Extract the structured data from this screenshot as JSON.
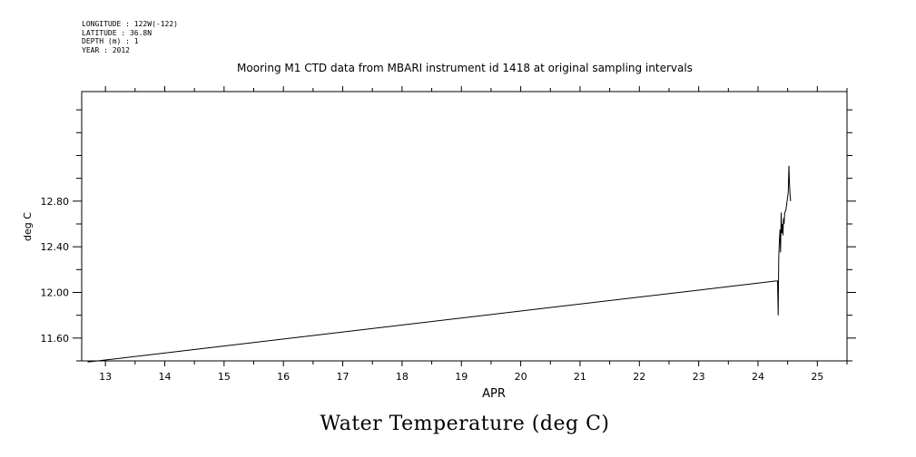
{
  "header": {
    "longitude": "LONGITUDE : 122W(-122)",
    "latitude": "LATITUDE : 36.8N",
    "depth": "DEPTH (m) : 1",
    "year": "YEAR : 2012"
  },
  "chart_data": {
    "type": "line",
    "title": "Mooring M1 CTD data from MBARI instrument id 1418 at original sampling intervals",
    "subtitle": "Water Temperature (deg C)",
    "xlabel": "APR",
    "ylabel": "deg C",
    "xlim": [
      12.6,
      25.5
    ],
    "ylim": [
      11.4,
      13.76
    ],
    "x_ticks": [
      "13",
      "14",
      "15",
      "16",
      "17",
      "18",
      "19",
      "20",
      "21",
      "22",
      "23",
      "24",
      "25"
    ],
    "x_tick_values": [
      13,
      14,
      15,
      16,
      17,
      18,
      19,
      20,
      21,
      22,
      23,
      24,
      25
    ],
    "y_ticks": [
      "11.60",
      "12.00",
      "12.40",
      "12.80"
    ],
    "y_tick_values": [
      11.6,
      12.0,
      12.4,
      12.8
    ],
    "grid": false,
    "series": [
      {
        "values_x": [
          12.7,
          24.3,
          24.33,
          24.34,
          24.35,
          24.36,
          24.37,
          24.38,
          24.39,
          24.4,
          24.41,
          24.42,
          24.43,
          24.44,
          24.45,
          24.47,
          24.49,
          24.51,
          24.52,
          24.53,
          24.54,
          24.55
        ],
        "values_y": [
          11.39,
          12.1,
          12.1,
          11.8,
          12.3,
          12.45,
          12.55,
          12.35,
          12.7,
          12.52,
          12.6,
          12.5,
          12.65,
          12.6,
          12.7,
          12.72,
          12.8,
          12.88,
          13.11,
          12.96,
          12.85,
          12.8
        ]
      }
    ]
  }
}
